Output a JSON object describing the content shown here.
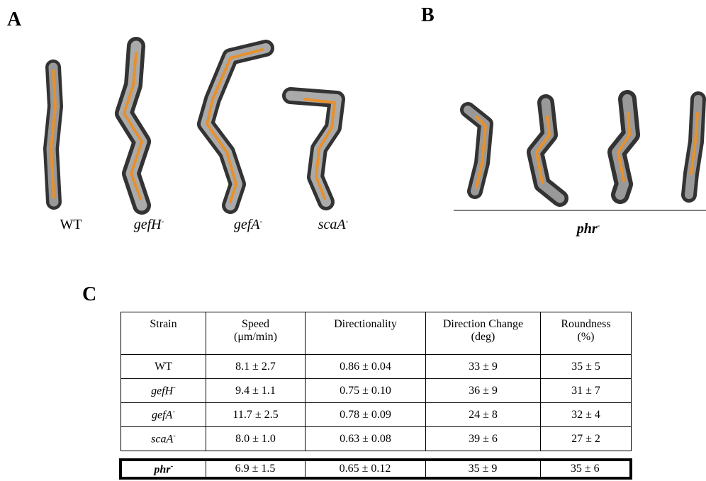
{
  "panel_a": {
    "label": "A",
    "strains": [
      {
        "name": "WT"
      },
      {
        "name": "gefH",
        "sup": "-"
      },
      {
        "name": "gefA",
        "sup": "-"
      },
      {
        "name": "scaA",
        "sup": "-"
      }
    ]
  },
  "panel_b": {
    "label": "B",
    "strain": {
      "name": "phr",
      "sup": "-"
    }
  },
  "panel_c": {
    "label": "C",
    "table": {
      "header": [
        "Strain",
        "Speed\n(μm/min)",
        "Directionality",
        "Direction Change\n(deg)",
        "Roundness\n(%)"
      ],
      "rows": [
        [
          {
            "name": "WT"
          },
          "8.1 ± 2.7",
          "0.86 ± 0.04",
          "33 ± 9",
          "35 ± 5"
        ],
        [
          {
            "name": "gefH",
            "sup": "-"
          },
          "9.4 ± 1.1",
          "0.75 ± 0.10",
          "36 ± 9",
          "31 ± 7"
        ],
        [
          {
            "name": "gefA",
            "sup": "-"
          },
          "11.7 ± 2.5",
          "0.78 ± 0.09",
          "24 ± 8",
          "32 ± 4"
        ],
        [
          {
            "name": "scaA",
            "sup": "-"
          },
          "8.0 ± 1.0",
          "0.63 ± 0.08",
          "39 ± 6",
          "27 ± 2"
        ]
      ],
      "highlight_row": [
        {
          "name": "phr",
          "sup": "-"
        },
        "6.9 ± 1.5",
        "0.65 ± 0.12",
        "35 ± 9",
        "35 ± 6"
      ]
    }
  }
}
